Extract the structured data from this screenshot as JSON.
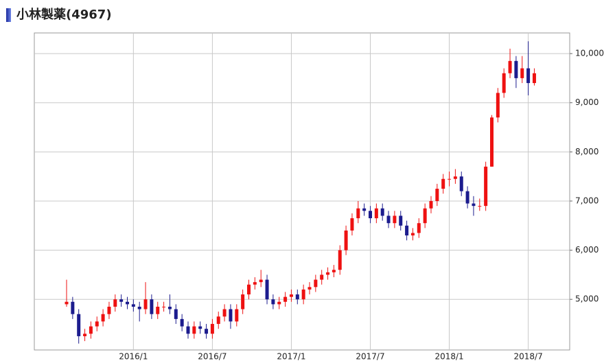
{
  "chart_data": {
    "type": "candlestick",
    "title": "小林製薬(4967)",
    "categories": [
      null,
      null,
      null,
      null,
      null,
      null,
      null,
      null,
      null,
      null,
      null,
      "2016/1",
      null,
      null,
      null,
      null,
      null,
      null,
      null,
      null,
      null,
      null,
      null,
      null,
      "2016/7",
      null,
      null,
      null,
      null,
      null,
      null,
      null,
      null,
      null,
      null,
      null,
      null,
      "2017/1",
      null,
      null,
      null,
      null,
      null,
      null,
      null,
      null,
      null,
      null,
      null,
      null,
      "2017/7",
      null,
      null,
      null,
      null,
      null,
      null,
      null,
      null,
      null,
      null,
      null,
      null,
      "2018/1",
      null,
      null,
      null,
      null,
      null,
      null,
      null,
      null,
      null,
      null,
      null,
      null,
      "2018/7",
      null
    ],
    "open": [
      4900,
      4950,
      4700,
      4250,
      4300,
      4450,
      4550,
      4700,
      4850,
      5000,
      4950,
      4900,
      4850,
      4800,
      5000,
      4700,
      4850,
      4850,
      4800,
      4600,
      4450,
      4300,
      4450,
      4400,
      4300,
      4500,
      4650,
      4800,
      4550,
      4800,
      5100,
      5300,
      5350,
      5400,
      5000,
      4900,
      4950,
      5050,
      5100,
      5000,
      5200,
      5250,
      5400,
      5500,
      5550,
      5600,
      6000,
      6400,
      6650,
      6850,
      6800,
      6650,
      6850,
      6700,
      6550,
      6700,
      6500,
      6300,
      6350,
      6550,
      6850,
      7000,
      7250,
      7450,
      7450,
      7500,
      7200,
      6950,
      6900,
      6900,
      7700,
      8700,
      9200,
      9600,
      9850,
      9500,
      9700,
      9400
    ],
    "high": [
      5400,
      5050,
      4800,
      4400,
      4550,
      4650,
      4800,
      4950,
      5100,
      5100,
      5050,
      5000,
      4950,
      5350,
      5100,
      4950,
      4950,
      5100,
      4900,
      4700,
      4550,
      4550,
      4550,
      4500,
      4600,
      4750,
      4900,
      4900,
      4900,
      5200,
      5400,
      5450,
      5600,
      5500,
      5100,
      5050,
      5150,
      5200,
      5200,
      5300,
      5350,
      5500,
      5600,
      5650,
      5700,
      6100,
      6500,
      6750,
      7000,
      6950,
      6900,
      6950,
      6950,
      6800,
      6800,
      6800,
      6600,
      6450,
      6650,
      6950,
      7100,
      7350,
      7550,
      7600,
      7650,
      7600,
      7300,
      7100,
      7050,
      7800,
      8750,
      9300,
      9700,
      10100,
      9950,
      9950,
      10250,
      9700
    ],
    "low": [
      4850,
      4600,
      4100,
      4150,
      4200,
      4350,
      4450,
      4600,
      4750,
      4850,
      4800,
      4750,
      4550,
      4700,
      4600,
      4600,
      4750,
      4700,
      4500,
      4350,
      4200,
      4200,
      4300,
      4200,
      4200,
      4400,
      4550,
      4400,
      4450,
      4700,
      5000,
      5200,
      5250,
      4900,
      4800,
      4800,
      4850,
      4950,
      4900,
      4900,
      5100,
      5150,
      5300,
      5400,
      5450,
      5500,
      5900,
      6300,
      6550,
      6700,
      6550,
      6550,
      6600,
      6450,
      6450,
      6400,
      6200,
      6200,
      6250,
      6450,
      6750,
      6900,
      7150,
      7300,
      7350,
      7100,
      6850,
      6700,
      6800,
      6800,
      7700,
      8600,
      9100,
      9500,
      9300,
      9400,
      9150,
      9350
    ],
    "close": [
      4950,
      4700,
      4250,
      4300,
      4450,
      4550,
      4700,
      4850,
      5000,
      4950,
      4900,
      4850,
      4800,
      5000,
      4700,
      4850,
      4850,
      4800,
      4600,
      4450,
      4300,
      4450,
      4400,
      4300,
      4500,
      4650,
      4800,
      4550,
      4800,
      5100,
      5300,
      5350,
      5400,
      5000,
      4900,
      4950,
      5050,
      5100,
      5000,
      5200,
      5250,
      5400,
      5500,
      5550,
      5600,
      6000,
      6400,
      6650,
      6850,
      6800,
      6650,
      6850,
      6700,
      6550,
      6700,
      6500,
      6300,
      6350,
      6550,
      6850,
      7000,
      7250,
      7450,
      7450,
      7500,
      7200,
      6950,
      6900,
      6900,
      7700,
      8700,
      9200,
      9600,
      9850,
      9500,
      9700,
      9400,
      9600
    ],
    "up_color": "#ee1111",
    "down_color": "#1c1c8e",
    "ylim": [
      3970,
      10420
    ],
    "yticks": [
      {
        "value": 5000,
        "label": "5,000"
      },
      {
        "value": 6000,
        "label": "6,000"
      },
      {
        "value": 7000,
        "label": "7,000"
      },
      {
        "value": 8000,
        "label": "8,000"
      },
      {
        "value": 9000,
        "label": "9,000"
      },
      {
        "value": 10000,
        "label": "10,000"
      }
    ],
    "grid": true
  }
}
